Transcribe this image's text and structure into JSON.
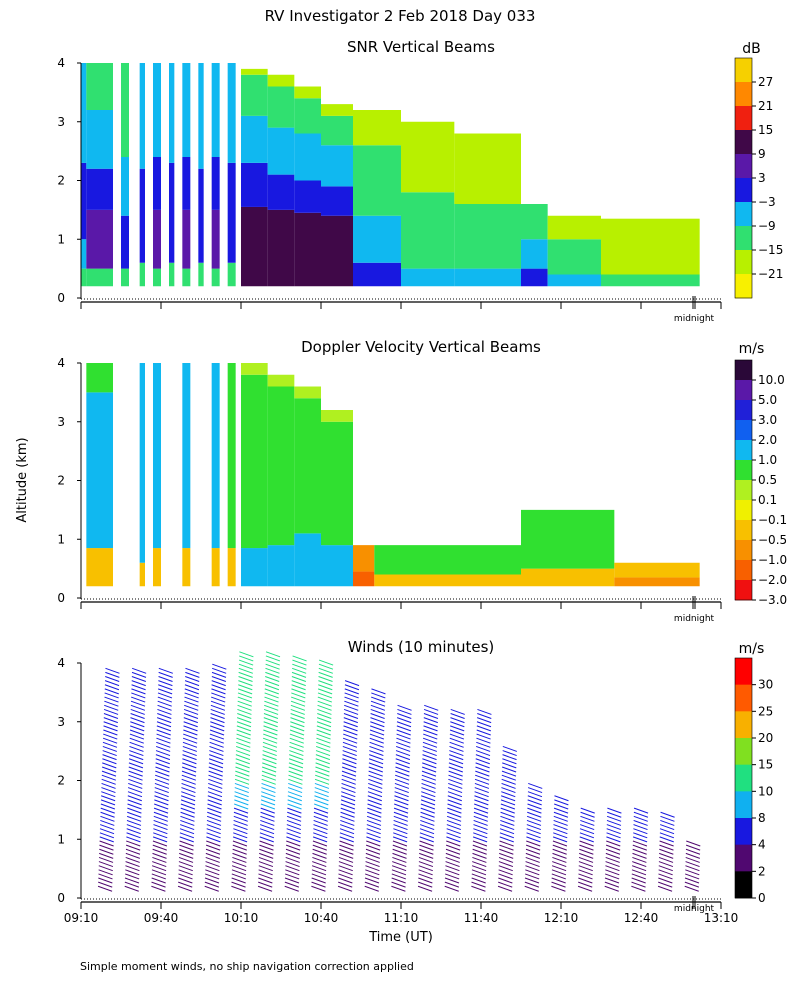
{
  "page": {
    "title": "RV Investigator   2 Feb 2018 Day 033",
    "footnote": "Simple moment winds, no ship navigation correction applied",
    "y_axis_label": "Altitude (km)",
    "x_axis_label": "Time (UT)",
    "midnight_label": "midnight"
  },
  "chart_data": [
    {
      "type": "heatmap",
      "title": "SNR Vertical Beams",
      "ylabel": "Altitude (km)",
      "yticks": [
        "0",
        "1",
        "2",
        "3",
        "4"
      ],
      "ylim": [
        0,
        4
      ],
      "xlim": [
        "09:10",
        "13:10"
      ],
      "colorbar": {
        "unit": "dB",
        "labels": [
          "27",
          "21",
          "15",
          "9",
          "3",
          "−3",
          "−9",
          "−15",
          "−21"
        ],
        "colors": [
          "#f6d000",
          "#ff8800",
          "#f02010",
          "#400848",
          "#5a18a8",
          "#1818e0",
          "#10b8f0",
          "#30e070",
          "#b8f000",
          "#f8f000"
        ]
      },
      "columns": [
        {
          "t0": "09:10",
          "t1": "09:12",
          "top": 4.0,
          "bands": [
            [
              0.2,
              0.5,
              "#30e070"
            ],
            [
              0.5,
              1.0,
              "#10b8f0"
            ],
            [
              1.0,
              2.3,
              "#1818e0"
            ],
            [
              2.3,
              4.0,
              "#10b8f0"
            ]
          ]
        },
        {
          "t0": "09:12",
          "t1": "09:22",
          "top": 4.0,
          "bands": [
            [
              0.2,
              0.5,
              "#30e070"
            ],
            [
              0.5,
              1.5,
              "#5a18a8"
            ],
            [
              1.5,
              2.2,
              "#1818e0"
            ],
            [
              2.2,
              3.2,
              "#10b8f0"
            ],
            [
              3.2,
              4.0,
              "#30e070"
            ]
          ]
        },
        {
          "t0": "09:25",
          "t1": "09:28",
          "top": 4.0,
          "bands": [
            [
              0.2,
              0.5,
              "#30e070"
            ],
            [
              0.5,
              1.4,
              "#1818e0"
            ],
            [
              1.4,
              2.4,
              "#10b8f0"
            ],
            [
              2.4,
              4.0,
              "#30e070"
            ]
          ]
        },
        {
          "t0": "09:32",
          "t1": "09:34",
          "top": 4.0,
          "bands": [
            [
              0.2,
              0.6,
              "#30e070"
            ],
            [
              0.6,
              2.2,
              "#1818e0"
            ],
            [
              2.2,
              4.0,
              "#10b8f0"
            ]
          ]
        },
        {
          "t0": "09:37",
          "t1": "09:40",
          "top": 4.0,
          "bands": [
            [
              0.2,
              0.5,
              "#30e070"
            ],
            [
              0.5,
              1.5,
              "#5a18a8"
            ],
            [
              1.5,
              2.4,
              "#1818e0"
            ],
            [
              2.4,
              4.0,
              "#10b8f0"
            ]
          ]
        },
        {
          "t0": "09:43",
          "t1": "09:45",
          "top": 4.0,
          "bands": [
            [
              0.2,
              0.6,
              "#30e070"
            ],
            [
              0.6,
              2.3,
              "#1818e0"
            ],
            [
              2.3,
              4.0,
              "#10b8f0"
            ]
          ]
        },
        {
          "t0": "09:48",
          "t1": "09:51",
          "top": 4.0,
          "bands": [
            [
              0.2,
              0.5,
              "#30e070"
            ],
            [
              0.5,
              1.5,
              "#5a18a8"
            ],
            [
              1.5,
              2.4,
              "#1818e0"
            ],
            [
              2.4,
              4.0,
              "#10b8f0"
            ]
          ]
        },
        {
          "t0": "09:54",
          "t1": "09:56",
          "top": 4.0,
          "bands": [
            [
              0.2,
              0.6,
              "#30e070"
            ],
            [
              0.6,
              2.2,
              "#1818e0"
            ],
            [
              2.2,
              4.0,
              "#10b8f0"
            ]
          ]
        },
        {
          "t0": "09:59",
          "t1": "10:02",
          "top": 4.0,
          "bands": [
            [
              0.2,
              0.5,
              "#30e070"
            ],
            [
              0.5,
              1.5,
              "#5a18a8"
            ],
            [
              1.5,
              2.4,
              "#1818e0"
            ],
            [
              2.4,
              4.0,
              "#10b8f0"
            ]
          ]
        },
        {
          "t0": "10:05",
          "t1": "10:08",
          "top": 4.0,
          "bands": [
            [
              0.2,
              0.6,
              "#30e070"
            ],
            [
              0.6,
              2.3,
              "#1818e0"
            ],
            [
              2.3,
              4.0,
              "#10b8f0"
            ]
          ]
        },
        {
          "t0": "10:10",
          "t1": "10:20",
          "top": 3.9,
          "bands": [
            [
              0.2,
              1.55,
              "#400848"
            ],
            [
              1.55,
              2.3,
              "#1818e0"
            ],
            [
              2.3,
              3.1,
              "#10b8f0"
            ],
            [
              3.1,
              3.8,
              "#30e070"
            ],
            [
              3.8,
              3.9,
              "#b8f000"
            ]
          ]
        },
        {
          "t0": "10:20",
          "t1": "10:30",
          "top": 3.8,
          "bands": [
            [
              0.2,
              1.5,
              "#400848"
            ],
            [
              1.5,
              2.1,
              "#1818e0"
            ],
            [
              2.1,
              2.9,
              "#10b8f0"
            ],
            [
              2.9,
              3.6,
              "#30e070"
            ],
            [
              3.6,
              3.8,
              "#b8f000"
            ]
          ]
        },
        {
          "t0": "10:30",
          "t1": "10:40",
          "top": 3.6,
          "bands": [
            [
              0.2,
              1.45,
              "#400848"
            ],
            [
              1.45,
              2.0,
              "#1818e0"
            ],
            [
              2.0,
              2.8,
              "#10b8f0"
            ],
            [
              2.8,
              3.4,
              "#30e070"
            ],
            [
              3.4,
              3.6,
              "#b8f000"
            ]
          ]
        },
        {
          "t0": "10:40",
          "t1": "10:52",
          "top": 3.3,
          "bands": [
            [
              0.2,
              1.4,
              "#400848"
            ],
            [
              1.4,
              1.9,
              "#1818e0"
            ],
            [
              1.9,
              2.6,
              "#10b8f0"
            ],
            [
              2.6,
              3.1,
              "#30e070"
            ],
            [
              3.1,
              3.3,
              "#b8f000"
            ]
          ]
        },
        {
          "t0": "10:52",
          "t1": "11:10",
          "top": 3.2,
          "bands": [
            [
              0.2,
              0.6,
              "#1818e0"
            ],
            [
              0.6,
              1.4,
              "#10b8f0"
            ],
            [
              1.4,
              2.6,
              "#30e070"
            ],
            [
              2.6,
              3.2,
              "#b8f000"
            ]
          ]
        },
        {
          "t0": "11:10",
          "t1": "11:30",
          "top": 3.0,
          "bands": [
            [
              0.2,
              0.5,
              "#10b8f0"
            ],
            [
              0.5,
              1.8,
              "#30e070"
            ],
            [
              1.8,
              3.0,
              "#b8f000"
            ]
          ]
        },
        {
          "t0": "11:30",
          "t1": "11:55",
          "top": 2.8,
          "bands": [
            [
              0.2,
              0.5,
              "#10b8f0"
            ],
            [
              0.5,
              1.6,
              "#30e070"
            ],
            [
              1.6,
              2.8,
              "#b8f000"
            ]
          ]
        },
        {
          "t0": "11:55",
          "t1": "12:05",
          "top": 1.6,
          "bands": [
            [
              0.2,
              0.5,
              "#1818e0"
            ],
            [
              0.5,
              1.0,
              "#10b8f0"
            ],
            [
              1.0,
              1.6,
              "#30e070"
            ]
          ]
        },
        {
          "t0": "12:05",
          "t1": "12:25",
          "top": 1.4,
          "bands": [
            [
              0.2,
              0.4,
              "#10b8f0"
            ],
            [
              0.4,
              1.0,
              "#30e070"
            ],
            [
              1.0,
              1.4,
              "#b8f000"
            ]
          ]
        },
        {
          "t0": "12:25",
          "t1": "13:02",
          "top": 1.35,
          "bands": [
            [
              0.2,
              0.4,
              "#30e070"
            ],
            [
              0.4,
              1.35,
              "#b8f000"
            ]
          ]
        }
      ]
    },
    {
      "type": "heatmap",
      "title": "Doppler Velocity Vertical Beams",
      "ylabel": "Altitude (km)",
      "yticks": [
        "0",
        "1",
        "2",
        "3",
        "4"
      ],
      "ylim": [
        0,
        4
      ],
      "xlim": [
        "09:10",
        "13:10"
      ],
      "colorbar": {
        "unit": "m/s",
        "labels": [
          "10.0",
          "5.0",
          "3.0",
          "2.0",
          "1.0",
          "0.5",
          "0.1",
          "−0.1",
          "−0.5",
          "−1.0",
          "−2.0",
          "−3.0"
        ],
        "colors": [
          "#2a0838",
          "#5a18a8",
          "#2020d8",
          "#1060f0",
          "#10b8f0",
          "#30e030",
          "#b0f020",
          "#f0f000",
          "#f8c000",
          "#f89000",
          "#f86000",
          "#f01010"
        ]
      },
      "columns": [
        {
          "t0": "09:12",
          "t1": "09:22",
          "top": 4.0,
          "bands": [
            [
              0.2,
              0.85,
              "#f8c000"
            ],
            [
              0.85,
              3.5,
              "#10b8f0"
            ],
            [
              3.5,
              4.0,
              "#30e030"
            ]
          ]
        },
        {
          "t0": "09:32",
          "t1": "09:34",
          "top": 4.0,
          "bands": [
            [
              0.2,
              0.6,
              "#f8c000"
            ],
            [
              0.6,
              4.0,
              "#10b8f0"
            ]
          ]
        },
        {
          "t0": "09:37",
          "t1": "09:40",
          "top": 4.0,
          "bands": [
            [
              0.2,
              0.85,
              "#f8c000"
            ],
            [
              0.85,
              4.0,
              "#10b8f0"
            ]
          ]
        },
        {
          "t0": "09:48",
          "t1": "09:51",
          "top": 4.0,
          "bands": [
            [
              0.2,
              0.85,
              "#f8c000"
            ],
            [
              0.85,
              4.0,
              "#10b8f0"
            ]
          ]
        },
        {
          "t0": "09:59",
          "t1": "10:02",
          "top": 4.0,
          "bands": [
            [
              0.2,
              0.85,
              "#f8c000"
            ],
            [
              0.85,
              4.0,
              "#10b8f0"
            ]
          ]
        },
        {
          "t0": "10:05",
          "t1": "10:08",
          "top": 4.0,
          "bands": [
            [
              0.2,
              0.85,
              "#f8c000"
            ],
            [
              0.85,
              4.0,
              "#30e030"
            ]
          ]
        },
        {
          "t0": "10:10",
          "t1": "10:20",
          "top": 4.0,
          "bands": [
            [
              0.2,
              0.85,
              "#10b8f0"
            ],
            [
              0.85,
              1.6,
              "#30e030"
            ],
            [
              1.6,
              3.8,
              "#30e030"
            ],
            [
              3.8,
              4.0,
              "#b0f020"
            ]
          ]
        },
        {
          "t0": "10:20",
          "t1": "10:30",
          "top": 3.8,
          "bands": [
            [
              0.2,
              0.9,
              "#10b8f0"
            ],
            [
              0.9,
              3.6,
              "#30e030"
            ],
            [
              3.6,
              3.8,
              "#b0f020"
            ]
          ]
        },
        {
          "t0": "10:30",
          "t1": "10:40",
          "top": 3.6,
          "bands": [
            [
              0.2,
              1.1,
              "#10b8f0"
            ],
            [
              1.1,
              3.4,
              "#30e030"
            ],
            [
              3.4,
              3.6,
              "#b0f020"
            ]
          ]
        },
        {
          "t0": "10:40",
          "t1": "10:52",
          "top": 3.2,
          "bands": [
            [
              0.2,
              0.9,
              "#10b8f0"
            ],
            [
              0.9,
              3.0,
              "#30e030"
            ],
            [
              3.0,
              3.2,
              "#b0f020"
            ]
          ]
        },
        {
          "t0": "10:52",
          "t1": "11:00",
          "top": 0.9,
          "bands": [
            [
              0.2,
              0.45,
              "#f86000"
            ],
            [
              0.45,
              0.9,
              "#f89000"
            ]
          ]
        },
        {
          "t0": "11:00",
          "t1": "11:55",
          "top": 0.9,
          "bands": [
            [
              0.2,
              0.4,
              "#f8c000"
            ],
            [
              0.4,
              0.9,
              "#30e030"
            ]
          ]
        },
        {
          "t0": "11:55",
          "t1": "12:30",
          "top": 1.5,
          "bands": [
            [
              0.2,
              0.5,
              "#f8c000"
            ],
            [
              0.5,
              1.5,
              "#30e030"
            ]
          ]
        },
        {
          "t0": "12:30",
          "t1": "13:02",
          "top": 0.6,
          "bands": [
            [
              0.2,
              0.35,
              "#f89000"
            ],
            [
              0.35,
              0.6,
              "#f8c000"
            ]
          ]
        }
      ]
    },
    {
      "type": "wind_barbs",
      "title": "Winds (10 minutes)",
      "ylabel": "Altitude (km)",
      "xlabel": "Time (UT)",
      "yticks": [
        "0",
        "1",
        "2",
        "3",
        "4"
      ],
      "ylim": [
        0,
        4
      ],
      "xticks": [
        "09:10",
        "09:40",
        "10:10",
        "10:40",
        "11:10",
        "11:40",
        "12:10",
        "12:40",
        "13:10"
      ],
      "xlim": [
        "09:10",
        "13:10"
      ],
      "colorbar": {
        "unit": "m/s",
        "labels": [
          "30",
          "25",
          "20",
          "15",
          "10",
          "8",
          "4",
          "2",
          "0"
        ],
        "colors": [
          "#ff0000",
          "#ff5a00",
          "#f8b000",
          "#80e020",
          "#20e080",
          "#10b0f0",
          "#1818e0",
          "#500870",
          "#000000"
        ]
      },
      "profile_times": [
        "09:20",
        "09:30",
        "09:40",
        "09:50",
        "10:00",
        "10:10",
        "10:20",
        "10:30",
        "10:40",
        "10:50",
        "11:00",
        "11:10",
        "11:20",
        "11:30",
        "11:40",
        "11:50",
        "12:00",
        "12:10",
        "12:20",
        "12:30",
        "12:40",
        "12:50",
        "13:00"
      ],
      "profile_tops_km": [
        3.95,
        3.95,
        3.95,
        3.95,
        4.0,
        4.2,
        4.2,
        4.15,
        4.1,
        3.7,
        3.6,
        3.3,
        3.3,
        3.25,
        3.25,
        2.6,
        2.0,
        1.8,
        1.55,
        1.55,
        1.55,
        1.5,
        1.0
      ]
    }
  ]
}
